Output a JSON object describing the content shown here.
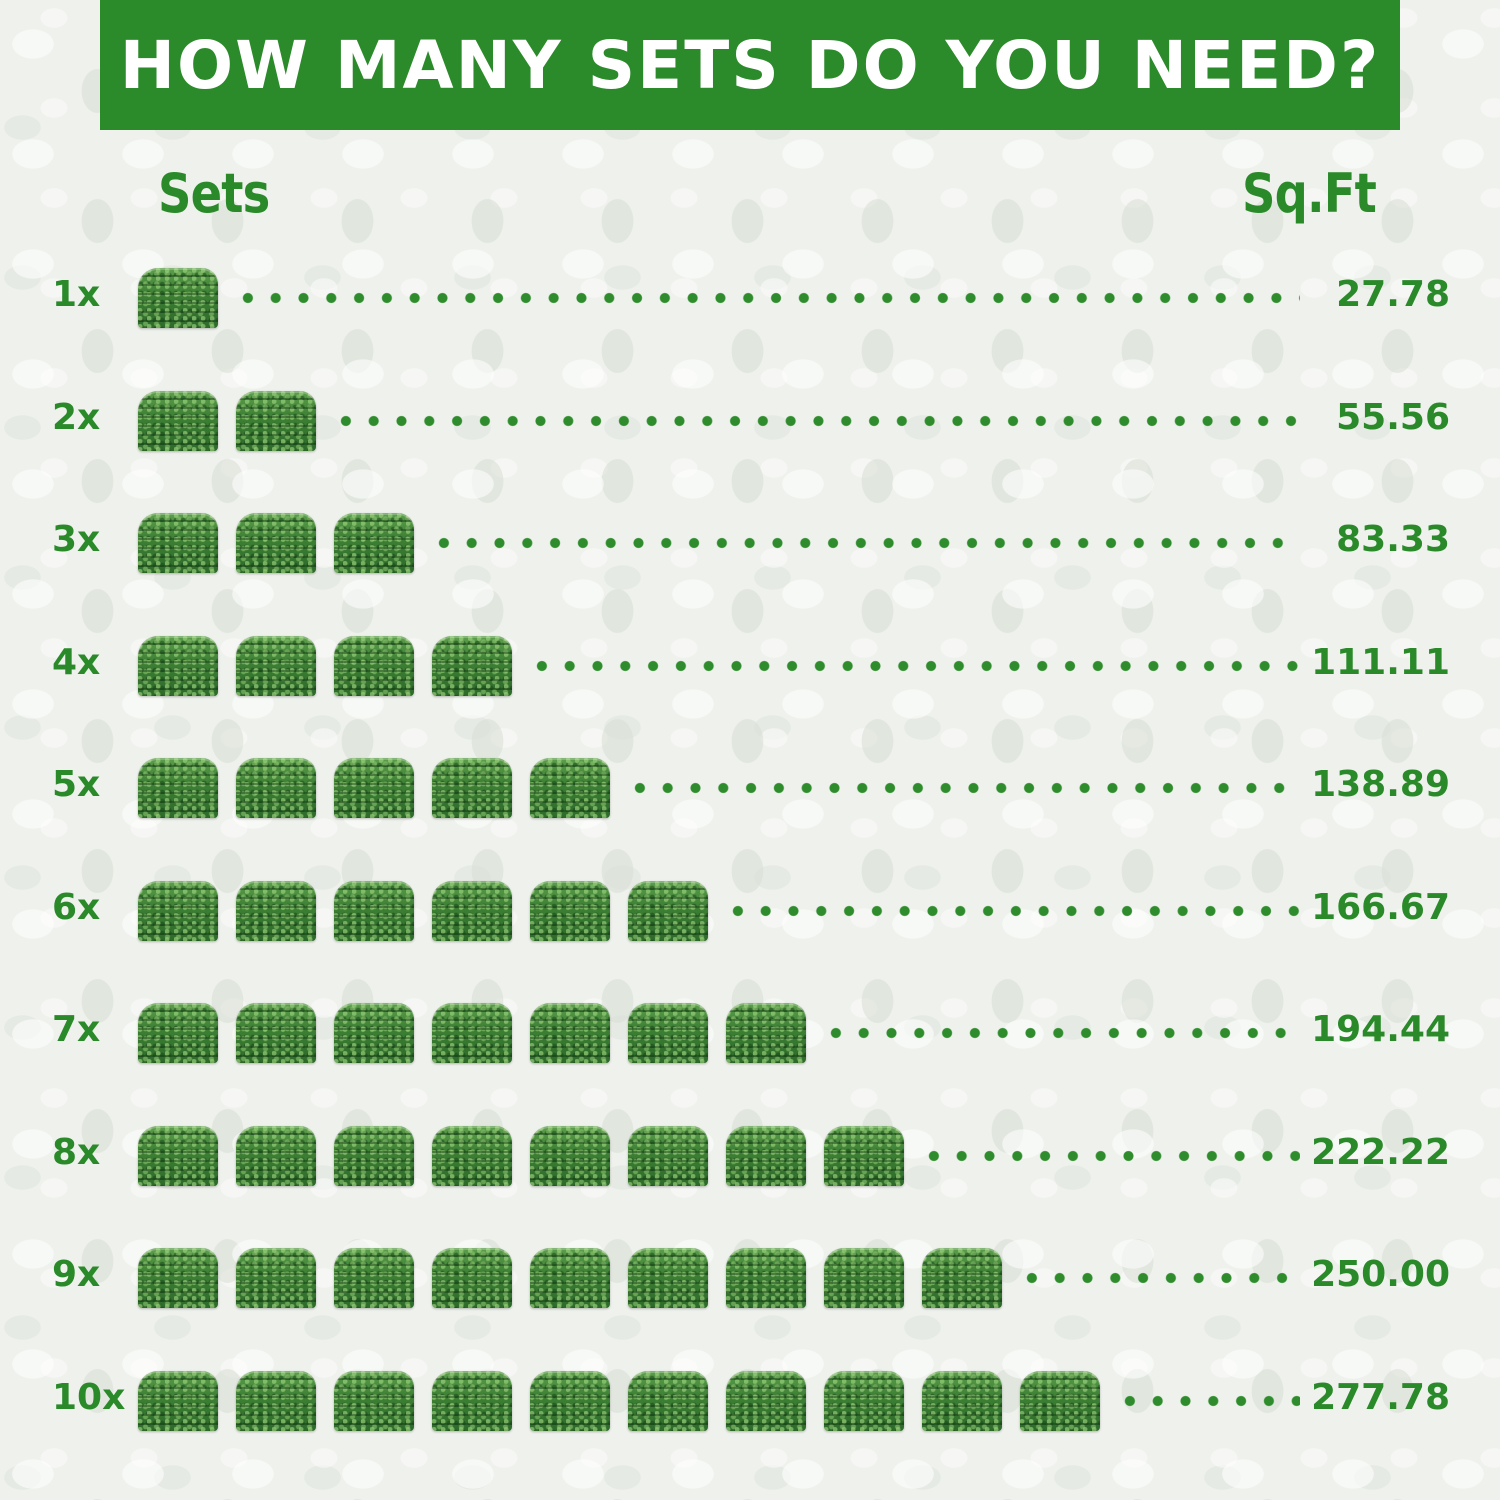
{
  "title": "HOW MANY SETS DO YOU NEED?",
  "headers": {
    "sets": "Sets",
    "sqft": "Sq.Ft"
  },
  "tile_icon": "grass-panel-set-icon",
  "accent_color": "#2b8a2a",
  "rows": [
    {
      "label": "1x",
      "sets": 1,
      "value": "27.78"
    },
    {
      "label": "2x",
      "sets": 2,
      "value": "55.56"
    },
    {
      "label": "3x",
      "sets": 3,
      "value": "83.33"
    },
    {
      "label": "4x",
      "sets": 4,
      "value": "111.11"
    },
    {
      "label": "5x",
      "sets": 5,
      "value": "138.89"
    },
    {
      "label": "6x",
      "sets": 6,
      "value": "166.67"
    },
    {
      "label": "7x",
      "sets": 7,
      "value": "194.44"
    },
    {
      "label": "8x",
      "sets": 8,
      "value": "222.22"
    },
    {
      "label": "9x",
      "sets": 9,
      "value": "250.00"
    },
    {
      "label": "10x",
      "sets": 10,
      "value": "277.78"
    }
  ]
}
